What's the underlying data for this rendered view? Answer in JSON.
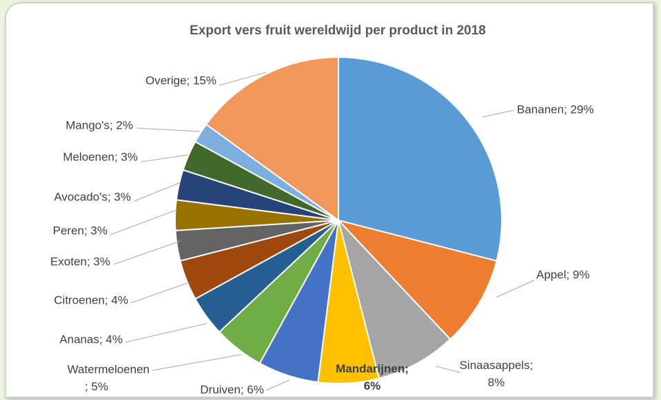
{
  "chart_data": {
    "type": "pie",
    "title": "Export vers fruit wereldwijd per product in 2018",
    "categories": [
      "Bananen",
      "Appel",
      "Sinaasappels",
      "Mandarijnen",
      "Druiven",
      "Watermeloenen",
      "Ananas",
      "Citroenen",
      "Exoten",
      "Peren",
      "Avocado's",
      "Meloenen",
      "Mango's",
      "Overige"
    ],
    "values": [
      29,
      9,
      8,
      6,
      6,
      5,
      4,
      4,
      3,
      3,
      3,
      3,
      2,
      15
    ],
    "value_labels": [
      "Bananen; 29%",
      "Appel; 9%",
      "Sinaasappels; 8%",
      "Mandarijnen; 6%",
      "Druiven; 6%",
      "Watermeloenen; 5%",
      "Ananas; 4%",
      "Citroenen; 4%",
      "Exoten; 3%",
      "Peren; 3%",
      "Avocado's; 3%",
      "Meloenen; 3%",
      "Mango's; 2%",
      "Overige; 15%"
    ],
    "colors": [
      "#5b9bd5",
      "#ed7d31",
      "#a5a5a5",
      "#ffc000",
      "#4472c4",
      "#70ad47",
      "#255e91",
      "#9e480e",
      "#636363",
      "#997300",
      "#264478",
      "#43682b",
      "#7cafdd",
      "#f1975a"
    ]
  }
}
